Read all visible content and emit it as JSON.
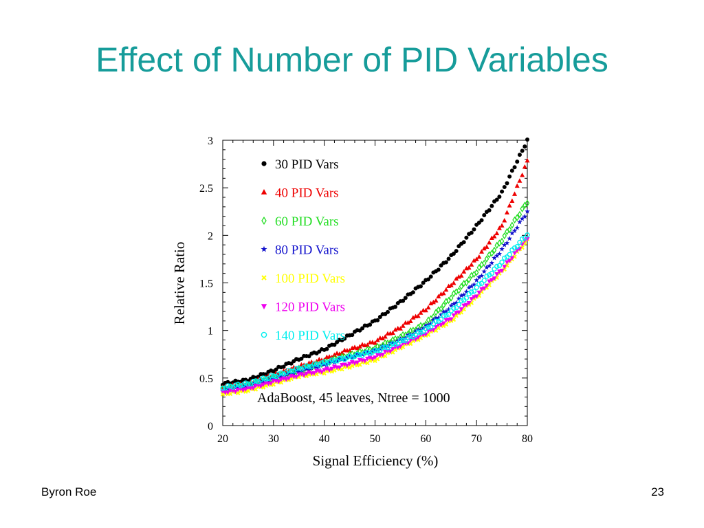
{
  "slide": {
    "title": "Effect of Number of PID Variables",
    "author": "Byron Roe",
    "page_number": "23"
  },
  "chart_data": {
    "type": "scatter",
    "title": "",
    "xlabel": "Signal Efficiency (%)",
    "ylabel": "Relative Ratio",
    "xlim": [
      20,
      80
    ],
    "ylim": [
      0,
      3
    ],
    "xticks": [
      "20",
      "30",
      "40",
      "50",
      "60",
      "70",
      "80"
    ],
    "yticks": [
      "0",
      "0.5",
      "1",
      "1.5",
      "2",
      "2.5",
      "3"
    ],
    "grid": false,
    "legend_position": "top-left",
    "annotation": "AdaBoost, 45 leaves, Ntree = 1000",
    "series": [
      {
        "name": "30 PID Vars",
        "color": "#000000",
        "marker": "circle",
        "x": [
          20,
          25,
          30,
          35,
          40,
          45,
          50,
          55,
          60,
          65,
          70,
          75,
          80
        ],
        "y": [
          0.44,
          0.48,
          0.58,
          0.7,
          0.8,
          0.95,
          1.1,
          1.3,
          1.52,
          1.78,
          2.1,
          2.45,
          3.0
        ]
      },
      {
        "name": "40 PID Vars",
        "color": "#ee0000",
        "marker": "triangle",
        "x": [
          20,
          25,
          30,
          35,
          40,
          45,
          50,
          55,
          60,
          65,
          70,
          75,
          80
        ],
        "y": [
          0.4,
          0.44,
          0.53,
          0.62,
          0.7,
          0.8,
          0.88,
          1.03,
          1.22,
          1.48,
          1.75,
          2.1,
          2.78
        ]
      },
      {
        "name": "60 PID Vars",
        "color": "#22dd22",
        "marker": "diamond",
        "x": [
          20,
          25,
          30,
          35,
          40,
          45,
          50,
          55,
          60,
          65,
          70,
          75,
          80
        ],
        "y": [
          0.38,
          0.42,
          0.5,
          0.58,
          0.66,
          0.74,
          0.81,
          0.93,
          1.07,
          1.35,
          1.62,
          1.95,
          2.35
        ]
      },
      {
        "name": "80 PID Vars",
        "color": "#1111cc",
        "marker": "star",
        "x": [
          20,
          25,
          30,
          35,
          40,
          45,
          50,
          55,
          60,
          65,
          70,
          75,
          80
        ],
        "y": [
          0.37,
          0.41,
          0.49,
          0.57,
          0.64,
          0.72,
          0.79,
          0.9,
          1.04,
          1.25,
          1.52,
          1.85,
          2.25
        ]
      },
      {
        "name": "100 PID Vars",
        "color": "#ffff00",
        "marker": "cross",
        "x": [
          20,
          25,
          30,
          35,
          40,
          45,
          50,
          55,
          60,
          65,
          70,
          75,
          80
        ],
        "y": [
          0.33,
          0.37,
          0.44,
          0.52,
          0.56,
          0.62,
          0.69,
          0.82,
          0.95,
          1.1,
          1.35,
          1.62,
          1.95
        ]
      },
      {
        "name": "120 PID Vars",
        "color": "#ee00ee",
        "marker": "triangle-down",
        "x": [
          20,
          25,
          30,
          35,
          40,
          45,
          50,
          55,
          60,
          65,
          70,
          75,
          80
        ],
        "y": [
          0.35,
          0.39,
          0.46,
          0.53,
          0.58,
          0.65,
          0.72,
          0.84,
          0.97,
          1.13,
          1.37,
          1.64,
          1.97
        ]
      },
      {
        "name": "140 PID Vars",
        "color": "#00eeee",
        "marker": "open-circle",
        "x": [
          20,
          25,
          30,
          35,
          40,
          45,
          50,
          55,
          60,
          65,
          70,
          75,
          80
        ],
        "y": [
          0.4,
          0.44,
          0.52,
          0.6,
          0.66,
          0.72,
          0.78,
          0.88,
          1.01,
          1.2,
          1.45,
          1.72,
          2.01
        ]
      }
    ]
  }
}
